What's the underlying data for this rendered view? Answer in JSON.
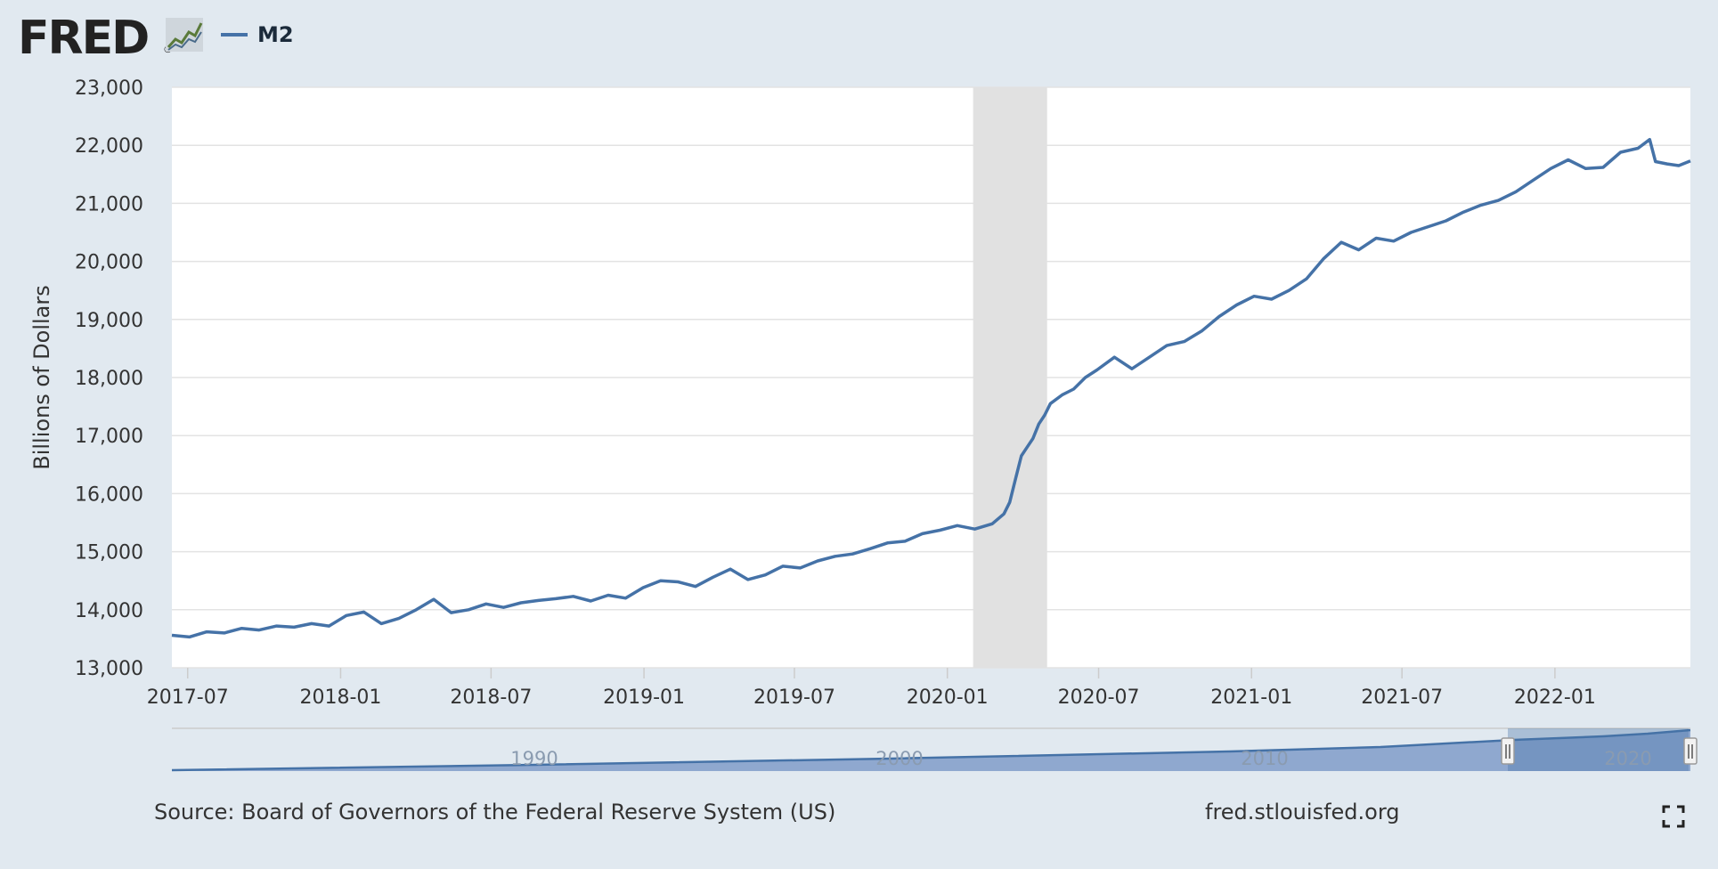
{
  "header": {
    "logo_text": "FRED",
    "legend_label": "M2"
  },
  "colors": {
    "background": "#e1e9f0",
    "series": "#4572a7",
    "recession": "#e1e1e1",
    "navigator_fill": "#8fa8cf"
  },
  "footer": {
    "source": "Source: Board of Governors of the Federal Reserve System (US)",
    "site": "fred.stlouisfed.org"
  },
  "icons": {
    "fullscreen": "fullscreen-icon",
    "logo_graph": "line-graph-icon"
  },
  "navigator": {
    "labels": [
      "1990",
      "2000",
      "2010",
      "2020"
    ]
  },
  "chart_data": {
    "type": "line",
    "title": "",
    "xlabel": "",
    "ylabel": "Billions of Dollars",
    "ylim": [
      13000,
      23000
    ],
    "xlim": [
      "2017-06-12",
      "2022-06-13"
    ],
    "grid": true,
    "legend_position": "top-left",
    "x_ticks": [
      "2017-07",
      "2018-01",
      "2018-07",
      "2019-01",
      "2019-07",
      "2020-01",
      "2020-07",
      "2021-01",
      "2021-07",
      "2022-01"
    ],
    "y_ticks": [
      "13,000",
      "14,000",
      "15,000",
      "16,000",
      "17,000",
      "18,000",
      "19,000",
      "20,000",
      "21,000",
      "22,000",
      "23,000"
    ],
    "recession": {
      "start": "2020-02-01",
      "end": "2020-04-30"
    },
    "series": [
      {
        "name": "M2",
        "points": [
          [
            "2017-06-12",
            13560
          ],
          [
            "2017-07-03",
            13530
          ],
          [
            "2017-07-24",
            13620
          ],
          [
            "2017-08-14",
            13600
          ],
          [
            "2017-09-04",
            13680
          ],
          [
            "2017-09-25",
            13650
          ],
          [
            "2017-10-16",
            13720
          ],
          [
            "2017-11-06",
            13700
          ],
          [
            "2017-11-27",
            13760
          ],
          [
            "2017-12-18",
            13720
          ],
          [
            "2018-01-08",
            13900
          ],
          [
            "2018-01-29",
            13960
          ],
          [
            "2018-02-19",
            13760
          ],
          [
            "2018-03-12",
            13850
          ],
          [
            "2018-04-02",
            14000
          ],
          [
            "2018-04-23",
            14180
          ],
          [
            "2018-05-14",
            13950
          ],
          [
            "2018-06-04",
            14000
          ],
          [
            "2018-06-25",
            14100
          ],
          [
            "2018-07-16",
            14040
          ],
          [
            "2018-08-06",
            14120
          ],
          [
            "2018-08-27",
            14160
          ],
          [
            "2018-09-17",
            14190
          ],
          [
            "2018-10-08",
            14230
          ],
          [
            "2018-10-29",
            14150
          ],
          [
            "2018-11-19",
            14250
          ],
          [
            "2018-12-10",
            14200
          ],
          [
            "2018-12-31",
            14380
          ],
          [
            "2019-01-21",
            14500
          ],
          [
            "2019-02-11",
            14480
          ],
          [
            "2019-03-04",
            14400
          ],
          [
            "2019-03-25",
            14560
          ],
          [
            "2019-04-15",
            14700
          ],
          [
            "2019-05-06",
            14520
          ],
          [
            "2019-05-27",
            14600
          ],
          [
            "2019-06-17",
            14750
          ],
          [
            "2019-07-08",
            14720
          ],
          [
            "2019-07-29",
            14840
          ],
          [
            "2019-08-19",
            14920
          ],
          [
            "2019-09-09",
            14960
          ],
          [
            "2019-09-30",
            15050
          ],
          [
            "2019-10-21",
            15150
          ],
          [
            "2019-11-11",
            15180
          ],
          [
            "2019-12-02",
            15310
          ],
          [
            "2019-12-23",
            15370
          ],
          [
            "2020-01-13",
            15450
          ],
          [
            "2020-02-03",
            15390
          ],
          [
            "2020-02-24",
            15480
          ],
          [
            "2020-03-09",
            15650
          ],
          [
            "2020-03-16",
            15850
          ],
          [
            "2020-03-23",
            16250
          ],
          [
            "2020-03-30",
            16650
          ],
          [
            "2020-04-06",
            16800
          ],
          [
            "2020-04-13",
            16950
          ],
          [
            "2020-04-20",
            17200
          ],
          [
            "2020-04-27",
            17350
          ],
          [
            "2020-05-04",
            17550
          ],
          [
            "2020-05-18",
            17700
          ],
          [
            "2020-06-01",
            17800
          ],
          [
            "2020-06-15",
            18000
          ],
          [
            "2020-06-29",
            18130
          ],
          [
            "2020-07-20",
            18350
          ],
          [
            "2020-08-10",
            18150
          ],
          [
            "2020-08-31",
            18350
          ],
          [
            "2020-09-21",
            18550
          ],
          [
            "2020-10-12",
            18620
          ],
          [
            "2020-11-02",
            18800
          ],
          [
            "2020-11-23",
            19050
          ],
          [
            "2020-12-14",
            19250
          ],
          [
            "2021-01-04",
            19400
          ],
          [
            "2021-01-25",
            19350
          ],
          [
            "2021-02-15",
            19500
          ],
          [
            "2021-03-08",
            19700
          ],
          [
            "2021-03-29",
            20050
          ],
          [
            "2021-04-19",
            20330
          ],
          [
            "2021-05-10",
            20200
          ],
          [
            "2021-05-31",
            20400
          ],
          [
            "2021-06-21",
            20350
          ],
          [
            "2021-07-12",
            20500
          ],
          [
            "2021-08-02",
            20600
          ],
          [
            "2021-08-23",
            20700
          ],
          [
            "2021-09-13",
            20850
          ],
          [
            "2021-10-04",
            20970
          ],
          [
            "2021-10-25",
            21050
          ],
          [
            "2021-11-15",
            21200
          ],
          [
            "2021-12-06",
            21400
          ],
          [
            "2021-12-27",
            21600
          ],
          [
            "2022-01-17",
            21750
          ],
          [
            "2022-02-07",
            21600
          ],
          [
            "2022-02-28",
            21620
          ],
          [
            "2022-03-21",
            21880
          ],
          [
            "2022-04-11",
            21950
          ],
          [
            "2022-04-25",
            22100
          ],
          [
            "2022-05-02",
            21720
          ],
          [
            "2022-05-16",
            21680
          ],
          [
            "2022-05-30",
            21650
          ],
          [
            "2022-06-13",
            21730
          ]
        ]
      }
    ]
  }
}
